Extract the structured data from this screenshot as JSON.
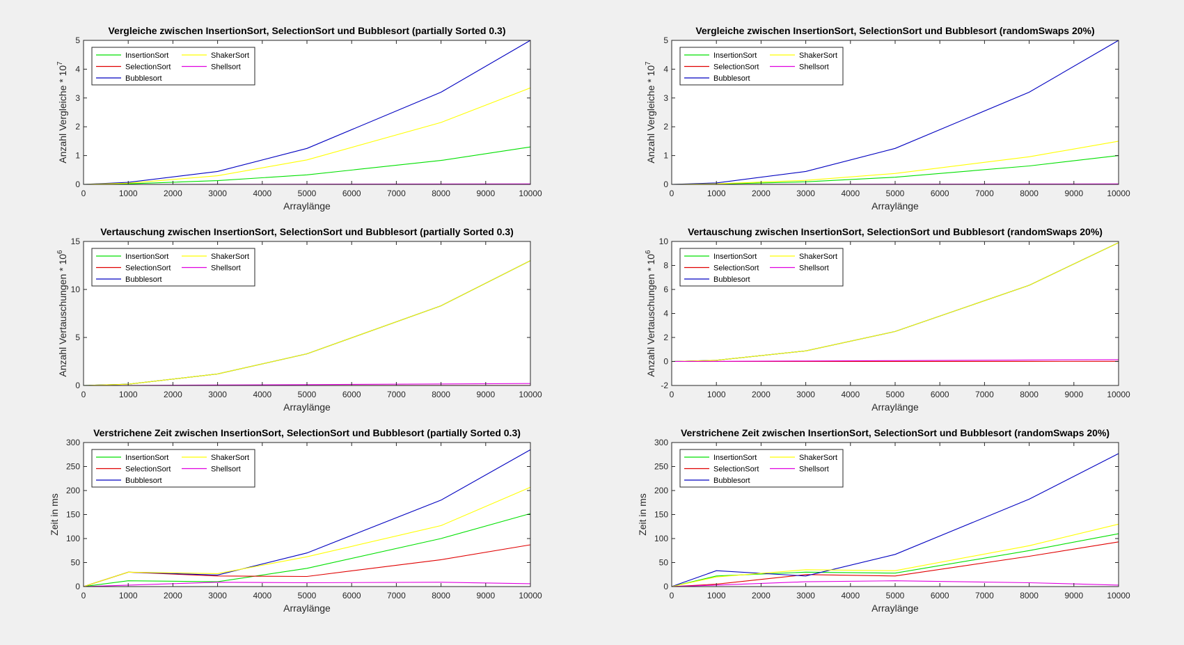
{
  "figure": {
    "background": "#f0f0f0"
  },
  "chart_data": [
    {
      "id": "cmp-partial",
      "type": "line",
      "title": "Vergleiche zwischen InsertionSort, SelectionSort und Bubblesort (partially Sorted 0.3)",
      "xlabel": "Arraylänge",
      "ylabel": "Anzahl Vergleiche * 10",
      "ylabel_exponent": "7",
      "xlim": [
        0,
        10000
      ],
      "ylim": [
        0,
        5
      ],
      "xticks": [
        0,
        1000,
        2000,
        3000,
        4000,
        5000,
        6000,
        7000,
        8000,
        9000,
        10000
      ],
      "yticks": [
        0,
        1,
        2,
        3,
        4,
        5
      ],
      "legend": "top-left",
      "grid": false,
      "x": [
        0,
        1000,
        3000,
        5000,
        8000,
        10000
      ],
      "series": [
        {
          "name": "InsertionSort",
          "color": "#00e000",
          "values": [
            0,
            0.02,
            0.13,
            0.33,
            0.83,
            1.3
          ]
        },
        {
          "name": "SelectionSort",
          "color": "#e00000",
          "values": [
            0,
            0.0001,
            0.0004,
            0.001,
            0.0025,
            0.004
          ]
        },
        {
          "name": "Bubblesort",
          "color": "#0000c0",
          "values": [
            0,
            0.07,
            0.45,
            1.25,
            3.2,
            5.0
          ]
        },
        {
          "name": "ShakerSort",
          "color": "#ffff00",
          "values": [
            0,
            0.04,
            0.3,
            0.85,
            2.15,
            3.35
          ]
        },
        {
          "name": "Shellsort",
          "color": "#e000e0",
          "values": [
            0,
            0.001,
            0.004,
            0.008,
            0.014,
            0.018
          ]
        }
      ]
    },
    {
      "id": "cmp-random",
      "type": "line",
      "title": "Vergleiche zwischen InsertionSort, SelectionSort und Bubblesort (randomSwaps 20%)",
      "xlabel": "Arraylänge",
      "ylabel": "Anzahl Vergleiche * 10",
      "ylabel_exponent": "7",
      "xlim": [
        0,
        10000
      ],
      "ylim": [
        0,
        5
      ],
      "xticks": [
        0,
        1000,
        2000,
        3000,
        4000,
        5000,
        6000,
        7000,
        8000,
        9000,
        10000
      ],
      "yticks": [
        0,
        1,
        2,
        3,
        4,
        5
      ],
      "legend": "top-left",
      "grid": false,
      "x": [
        0,
        1000,
        3000,
        5000,
        8000,
        10000
      ],
      "series": [
        {
          "name": "InsertionSort",
          "color": "#00e000",
          "values": [
            0,
            0.01,
            0.09,
            0.25,
            0.64,
            1.0
          ]
        },
        {
          "name": "SelectionSort",
          "color": "#e00000",
          "values": [
            0,
            0.0001,
            0.0004,
            0.001,
            0.0025,
            0.004
          ]
        },
        {
          "name": "Bubblesort",
          "color": "#0000c0",
          "values": [
            0,
            0.05,
            0.45,
            1.25,
            3.2,
            5.0
          ]
        },
        {
          "name": "ShakerSort",
          "color": "#ffff00",
          "values": [
            0,
            0.02,
            0.14,
            0.38,
            0.96,
            1.5
          ]
        },
        {
          "name": "Shellsort",
          "color": "#e000e0",
          "values": [
            0,
            0.001,
            0.004,
            0.008,
            0.014,
            0.018
          ]
        }
      ]
    },
    {
      "id": "swap-partial",
      "type": "line",
      "title": "Vertauschung zwischen InsertionSort, SelectionSort und Bubblesort (partially Sorted 0.3)",
      "xlabel": "Arraylänge",
      "ylabel": "Anzahl Vertauschungen * 10",
      "ylabel_exponent": "6",
      "xlim": [
        0,
        10000
      ],
      "ylim": [
        0,
        15
      ],
      "xticks": [
        0,
        1000,
        2000,
        3000,
        4000,
        5000,
        6000,
        7000,
        8000,
        9000,
        10000
      ],
      "yticks": [
        0,
        5,
        10,
        15
      ],
      "legend": "top-left",
      "grid": false,
      "x": [
        0,
        1000,
        3000,
        5000,
        8000,
        10000
      ],
      "series": [
        {
          "name": "InsertionSort",
          "color": "#00e000",
          "values": [
            0,
            0.13,
            1.2,
            3.3,
            8.3,
            13.0
          ]
        },
        {
          "name": "SelectionSort",
          "color": "#e00000",
          "values": [
            0,
            0.001,
            0.003,
            0.005,
            0.008,
            0.01
          ]
        },
        {
          "name": "Bubblesort",
          "color": "#0000c0",
          "values": [
            0,
            0.13,
            1.2,
            3.3,
            8.3,
            13.0
          ]
        },
        {
          "name": "ShakerSort",
          "color": "#ffff00",
          "values": [
            0,
            0.13,
            1.2,
            3.3,
            8.3,
            13.0
          ]
        },
        {
          "name": "Shellsort",
          "color": "#e000e0",
          "values": [
            0,
            0.01,
            0.05,
            0.09,
            0.16,
            0.2
          ]
        }
      ]
    },
    {
      "id": "swap-random",
      "type": "line",
      "title": "Vertauschung zwischen InsertionSort, SelectionSort und Bubblesort (randomSwaps 20%)",
      "xlabel": "Arraylänge",
      "ylabel": "Anzahl Vertauschungen * 10",
      "ylabel_exponent": "6",
      "xlim": [
        0,
        10000
      ],
      "ylim": [
        -2,
        10
      ],
      "xticks": [
        0,
        1000,
        2000,
        3000,
        4000,
        5000,
        6000,
        7000,
        8000,
        9000,
        10000
      ],
      "yticks": [
        -2,
        0,
        2,
        4,
        6,
        8,
        10
      ],
      "legend": "top-left",
      "grid": false,
      "x": [
        0,
        1000,
        3000,
        5000,
        8000,
        10000
      ],
      "series": [
        {
          "name": "InsertionSort",
          "color": "#00e000",
          "values": [
            0,
            0.1,
            0.88,
            2.5,
            6.35,
            9.9
          ]
        },
        {
          "name": "SelectionSort",
          "color": "#e00000",
          "values": [
            0,
            0.001,
            0.003,
            0.005,
            0.008,
            0.01
          ]
        },
        {
          "name": "Bubblesort",
          "color": "#0000c0",
          "values": [
            0,
            0.1,
            0.88,
            2.5,
            6.35,
            9.9
          ]
        },
        {
          "name": "ShakerSort",
          "color": "#ffff00",
          "values": [
            0,
            0.1,
            0.88,
            2.5,
            6.35,
            9.9
          ]
        },
        {
          "name": "Shellsort",
          "color": "#e000e0",
          "values": [
            0,
            0.01,
            0.04,
            0.07,
            0.12,
            0.15
          ]
        }
      ]
    },
    {
      "id": "time-partial",
      "type": "line",
      "title": "Verstrichene Zeit zwischen InsertionSort, SelectionSort und Bubblesort (partially Sorted 0.3)",
      "xlabel": "Arraylänge",
      "ylabel": "Zeit in ms",
      "ylabel_exponent": "",
      "xlim": [
        0,
        10000
      ],
      "ylim": [
        0,
        300
      ],
      "xticks": [
        0,
        1000,
        2000,
        3000,
        4000,
        5000,
        6000,
        7000,
        8000,
        9000,
        10000
      ],
      "yticks": [
        0,
        50,
        100,
        150,
        200,
        250,
        300
      ],
      "legend": "top-left",
      "grid": false,
      "x": [
        0,
        1000,
        3000,
        5000,
        8000,
        10000
      ],
      "series": [
        {
          "name": "InsertionSort",
          "color": "#00e000",
          "values": [
            0,
            12,
            10,
            38,
            100,
            152
          ]
        },
        {
          "name": "SelectionSort",
          "color": "#e00000",
          "values": [
            0,
            30,
            22,
            21,
            56,
            87
          ]
        },
        {
          "name": "Bubblesort",
          "color": "#0000c0",
          "values": [
            0,
            30,
            24,
            70,
            180,
            285
          ]
        },
        {
          "name": "ShakerSort",
          "color": "#ffff00",
          "values": [
            0,
            30,
            27,
            62,
            127,
            207
          ]
        },
        {
          "name": "Shellsort",
          "color": "#e000e0",
          "values": [
            0,
            3,
            9,
            8,
            9,
            6
          ]
        }
      ]
    },
    {
      "id": "time-random",
      "type": "line",
      "title": "Verstrichene Zeit zwischen InsertionSort, SelectionSort und Bubblesort (randomSwaps 20%)",
      "xlabel": "Arraylänge",
      "ylabel": "Zeit in ms",
      "ylabel_exponent": "",
      "xlim": [
        0,
        10000
      ],
      "ylim": [
        0,
        300
      ],
      "xticks": [
        0,
        1000,
        2000,
        3000,
        4000,
        5000,
        6000,
        7000,
        8000,
        9000,
        10000
      ],
      "yticks": [
        0,
        50,
        100,
        150,
        200,
        250,
        300
      ],
      "legend": "top-left",
      "grid": false,
      "x": [
        0,
        1000,
        3000,
        5000,
        8000,
        10000
      ],
      "series": [
        {
          "name": "InsertionSort",
          "color": "#00e000",
          "values": [
            0,
            22,
            30,
            28,
            75,
            110
          ]
        },
        {
          "name": "SelectionSort",
          "color": "#e00000",
          "values": [
            0,
            5,
            25,
            22,
            63,
            93
          ]
        },
        {
          "name": "Bubblesort",
          "color": "#0000c0",
          "values": [
            0,
            33,
            22,
            67,
            182,
            277
          ]
        },
        {
          "name": "ShakerSort",
          "color": "#ffff00",
          "values": [
            0,
            20,
            35,
            33,
            85,
            130
          ]
        },
        {
          "name": "Shellsort",
          "color": "#e000e0",
          "values": [
            0,
            3,
            10,
            12,
            8,
            3
          ]
        }
      ]
    }
  ]
}
